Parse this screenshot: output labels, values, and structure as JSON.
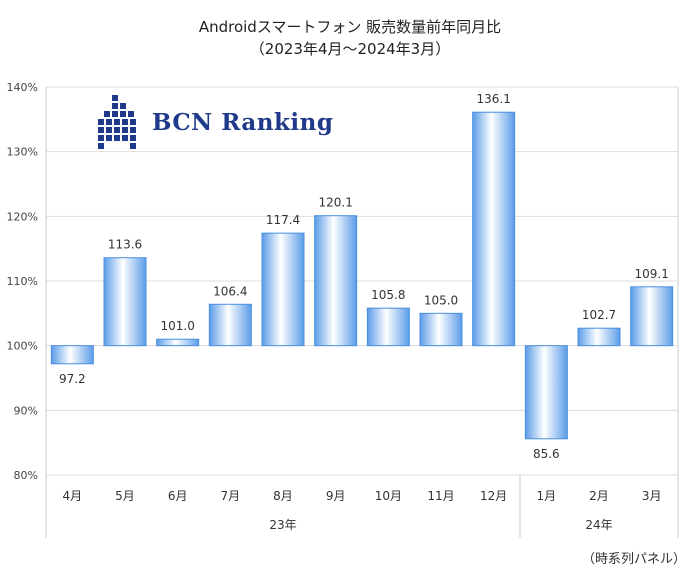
{
  "title": {
    "line1": "Androidスマートフォン 販売数量前年同月比",
    "line2": "（2023年4月～2024年3月）"
  },
  "logo": {
    "text": "BCN Ranking",
    "icon": "bcn-building-icon",
    "color": "#1f3a8a"
  },
  "note": "（時系列パネル）",
  "chart_data": {
    "type": "bar",
    "title": "Androidスマートフォン 販売数量前年同月比",
    "subtitle": "（2023年4月～2024年3月）",
    "categories": [
      "4月",
      "5月",
      "6月",
      "7月",
      "8月",
      "9月",
      "10月",
      "11月",
      "12月",
      "1月",
      "2月",
      "3月"
    ],
    "values": [
      97.2,
      113.6,
      101.0,
      106.4,
      117.4,
      120.1,
      105.8,
      105.0,
      136.1,
      85.6,
      102.7,
      109.1
    ],
    "value_labels": [
      "97.2",
      "113.6",
      "101.0",
      "106.4",
      "117.4",
      "120.1",
      "105.8",
      "105.0",
      "136.1",
      "85.6",
      "102.7",
      "109.1"
    ],
    "baseline": 100,
    "ylim": [
      80,
      140
    ],
    "yticks": [
      80,
      90,
      100,
      110,
      120,
      130,
      140
    ],
    "ytick_labels": [
      "80%",
      "90%",
      "100%",
      "110%",
      "120%",
      "130%",
      "140%"
    ],
    "year_groups": [
      {
        "label": "23年",
        "start": 0,
        "count": 9
      },
      {
        "label": "24年",
        "start": 9,
        "count": 3
      }
    ],
    "grid": true,
    "colors": {
      "bar_edge": "#4a8fe0",
      "bar_center": "#ffffff",
      "bar_side": "#5b9ce8",
      "grid": "#dddddd"
    }
  }
}
